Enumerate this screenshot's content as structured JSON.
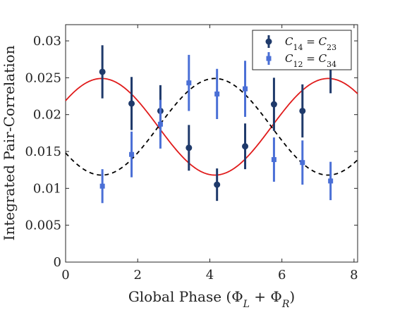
{
  "chart_data": {
    "type": "scatter",
    "xlabel": "Global Phase (Φ_L + Φ_R)",
    "ylabel": "Integrated Pair-Correlation",
    "xlim": [
      0,
      8.1
    ],
    "ylim": [
      0,
      0.0322
    ],
    "x_ticks": [
      0,
      2,
      4,
      6,
      8
    ],
    "x_tick_labels": [
      "0",
      "2",
      "4",
      "6",
      "8"
    ],
    "y_ticks": [
      0,
      0.005,
      0.01,
      0.015,
      0.02,
      0.025,
      0.03
    ],
    "y_tick_labels": [
      "0",
      "0.005",
      "0.01",
      "0.015",
      "0.02",
      "0.025",
      "0.03"
    ],
    "grid": false,
    "legend_position": "top-right",
    "series": [
      {
        "name": "C14 = C23",
        "label_main": "C",
        "label_sub1": "14",
        "label_sub2": "23",
        "color": "#1f3a6b",
        "marker": "circle",
        "x": [
          1.02,
          1.83,
          2.63,
          3.42,
          4.2,
          4.98,
          5.78,
          6.57,
          7.35
        ],
        "y": [
          0.0258,
          0.0215,
          0.0205,
          0.0155,
          0.0105,
          0.0157,
          0.0214,
          0.0205,
          0.0265
        ],
        "err": [
          0.0036,
          0.0036,
          0.0035,
          0.0031,
          0.0022,
          0.0031,
          0.0036,
          0.0036,
          0.0036
        ]
      },
      {
        "name": "C12 = C34",
        "label_main": "C",
        "label_sub1": "12",
        "label_sub2": "34",
        "color": "#4a6fd6",
        "marker": "square",
        "x": [
          1.02,
          1.83,
          2.63,
          3.42,
          4.2,
          4.98,
          5.78,
          6.57,
          7.35
        ],
        "y": [
          0.0103,
          0.0146,
          0.0187,
          0.0243,
          0.0228,
          0.0235,
          0.0139,
          0.0135,
          0.011
        ],
        "err": [
          0.0023,
          0.0031,
          0.0033,
          0.0038,
          0.0034,
          0.0038,
          0.003,
          0.003,
          0.0026
        ]
      }
    ],
    "curves": [
      {
        "name": "fit-solid",
        "color": "#e01b1b",
        "dash": "solid",
        "offset": 0.01835,
        "amplitude": 0.00655,
        "peak_x": 1.0,
        "period": 6.283
      },
      {
        "name": "fit-dashed",
        "color": "#000000",
        "dash": "dashed",
        "offset": 0.01835,
        "amplitude": 0.00655,
        "peak_x": 4.14,
        "period": 6.283
      }
    ]
  }
}
